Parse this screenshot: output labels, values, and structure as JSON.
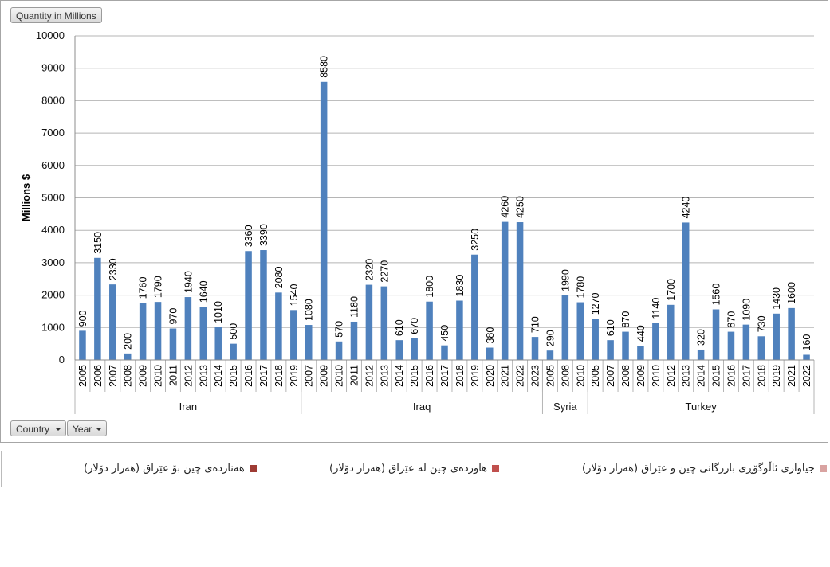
{
  "field_button": "Quantity in Millions",
  "filter_buttons": {
    "country": "Country",
    "year": "Year"
  },
  "legend": [
    {
      "label": "هەناردەی چین بۆ عێراق (هەزار دۆلار)",
      "color": "#9e3b34"
    },
    {
      "label": "هاوردەی چین لە عێراق (هەزار دۆلار)",
      "color": "#c0504d"
    },
    {
      "label": "جیاوازی ئاڵوگۆڕی بازرگانی چین و عێراق (هەزار دۆلار)",
      "color": "#d9a3a1"
    }
  ],
  "chart_data": {
    "type": "bar",
    "ylabel": "Millions $",
    "ylim": [
      0,
      10000
    ],
    "yticks": [
      0,
      1000,
      2000,
      3000,
      4000,
      5000,
      6000,
      7000,
      8000,
      9000,
      10000
    ],
    "grid": true,
    "bar_color": "#4f81bd",
    "groups": [
      {
        "name": "Iran",
        "years": [
          "2005",
          "2006",
          "2007",
          "2008",
          "2009",
          "2010",
          "2011",
          "2012",
          "2013",
          "2014",
          "2015",
          "2016",
          "2017",
          "2018",
          "2019"
        ],
        "values": [
          900,
          3150,
          2330,
          200,
          1760,
          1790,
          970,
          1940,
          1640,
          1010,
          500,
          3360,
          3390,
          2080,
          1540
        ]
      },
      {
        "name": "Iraq",
        "years": [
          "2007",
          "2009",
          "2010",
          "2011",
          "2012",
          "2013",
          "2014",
          "2015",
          "2016",
          "2017",
          "2018",
          "2019",
          "2020",
          "2021",
          "2022",
          "2023"
        ],
        "values": [
          1080,
          8580,
          570,
          1180,
          2320,
          2270,
          610,
          670,
          1800,
          450,
          1830,
          3250,
          380,
          4260,
          4250,
          710
        ]
      },
      {
        "name": "Syria",
        "years": [
          "2005",
          "2008",
          "2010"
        ],
        "values": [
          290,
          1990,
          1780
        ]
      },
      {
        "name": "Turkey",
        "years": [
          "2005",
          "2007",
          "2008",
          "2009",
          "2010",
          "2012",
          "2013",
          "2014",
          "2015",
          "2016",
          "2017",
          "2018",
          "2019",
          "2021",
          "2022"
        ],
        "values": [
          1270,
          610,
          870,
          440,
          1140,
          1700,
          4240,
          320,
          1560,
          870,
          1090,
          730,
          1430,
          1600,
          160
        ]
      }
    ]
  }
}
